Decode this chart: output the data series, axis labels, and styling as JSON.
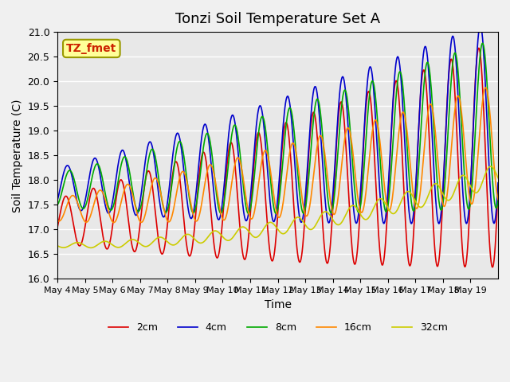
{
  "title": "Tonzi Soil Temperature Set A",
  "xlabel": "Time",
  "ylabel": "Soil Temperature (C)",
  "ylim": [
    16.0,
    21.0
  ],
  "yticks": [
    16.0,
    16.5,
    17.0,
    17.5,
    18.0,
    18.5,
    19.0,
    19.5,
    20.0,
    20.5,
    21.0
  ],
  "xtick_labels": [
    "May 4",
    "May 5",
    "May 6",
    "May 7",
    "May 8",
    "May 9",
    "May 10",
    "May 11",
    "May 12",
    "May 13",
    "May 14",
    "May 15",
    "May 16",
    "May 17",
    "May 18",
    "May 19"
  ],
  "legend_labels": [
    "2cm",
    "4cm",
    "8cm",
    "16cm",
    "32cm"
  ],
  "colors": [
    "#dd0000",
    "#0000cc",
    "#00aa00",
    "#ff8800",
    "#cccc00"
  ],
  "annotation_text": "TZ_fmet",
  "bg_color": "#e8e8e8",
  "fig_bg_color": "#f0f0f0",
  "n_days": 16,
  "points_per_day": 48
}
